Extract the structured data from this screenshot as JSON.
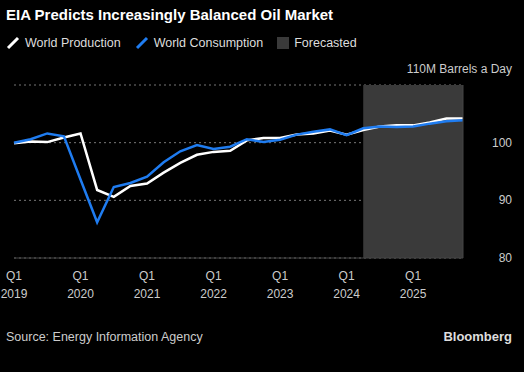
{
  "chart_data": {
    "type": "line",
    "title": "EIA Predicts Increasingly Balanced Oil Market",
    "categories": [
      "Q1\n2019",
      null,
      null,
      null,
      "Q1\n2020",
      null,
      null,
      null,
      "Q1\n2021",
      null,
      null,
      null,
      "Q1\n2022",
      null,
      null,
      null,
      "Q1\n2023",
      null,
      null,
      null,
      "Q1\n2024",
      null,
      null,
      null,
      "Q1\n2025",
      null,
      null,
      null
    ],
    "series": [
      {
        "name": "World Production",
        "color": "#ffffff",
        "values": [
          99.9,
          100.2,
          100.1,
          100.9,
          101.6,
          91.8,
          90.6,
          92.5,
          92.9,
          94.8,
          96.5,
          97.9,
          98.4,
          98.6,
          100.4,
          100.8,
          100.8,
          101.4,
          101.6,
          102.1,
          101.4,
          102.2,
          102.8,
          103.0,
          103.0,
          103.5,
          104.2,
          104.2
        ]
      },
      {
        "name": "World Consumption",
        "color": "#1f7cf0",
        "values": [
          100.0,
          100.6,
          101.6,
          101.1,
          93.6,
          86.2,
          92.3,
          93.0,
          94.1,
          96.6,
          98.5,
          99.6,
          98.9,
          99.3,
          100.6,
          100.1,
          100.5,
          101.4,
          101.9,
          102.3,
          101.3,
          102.5,
          102.8,
          102.7,
          102.8,
          103.3,
          103.7,
          103.9
        ]
      }
    ],
    "ylim": [
      80,
      110
    ],
    "yticks": [
      80,
      90,
      100,
      {
        "value": 110,
        "label": "110M Barrels a Day"
      }
    ],
    "grid": true,
    "legend": "top left",
    "annotations": [
      {
        "text": "Forecasted",
        "x": [
          21,
          27
        ],
        "color": "#3a3a3a"
      }
    ],
    "source": "Source: Energy Information Agency",
    "credit": "Bloomberg"
  }
}
